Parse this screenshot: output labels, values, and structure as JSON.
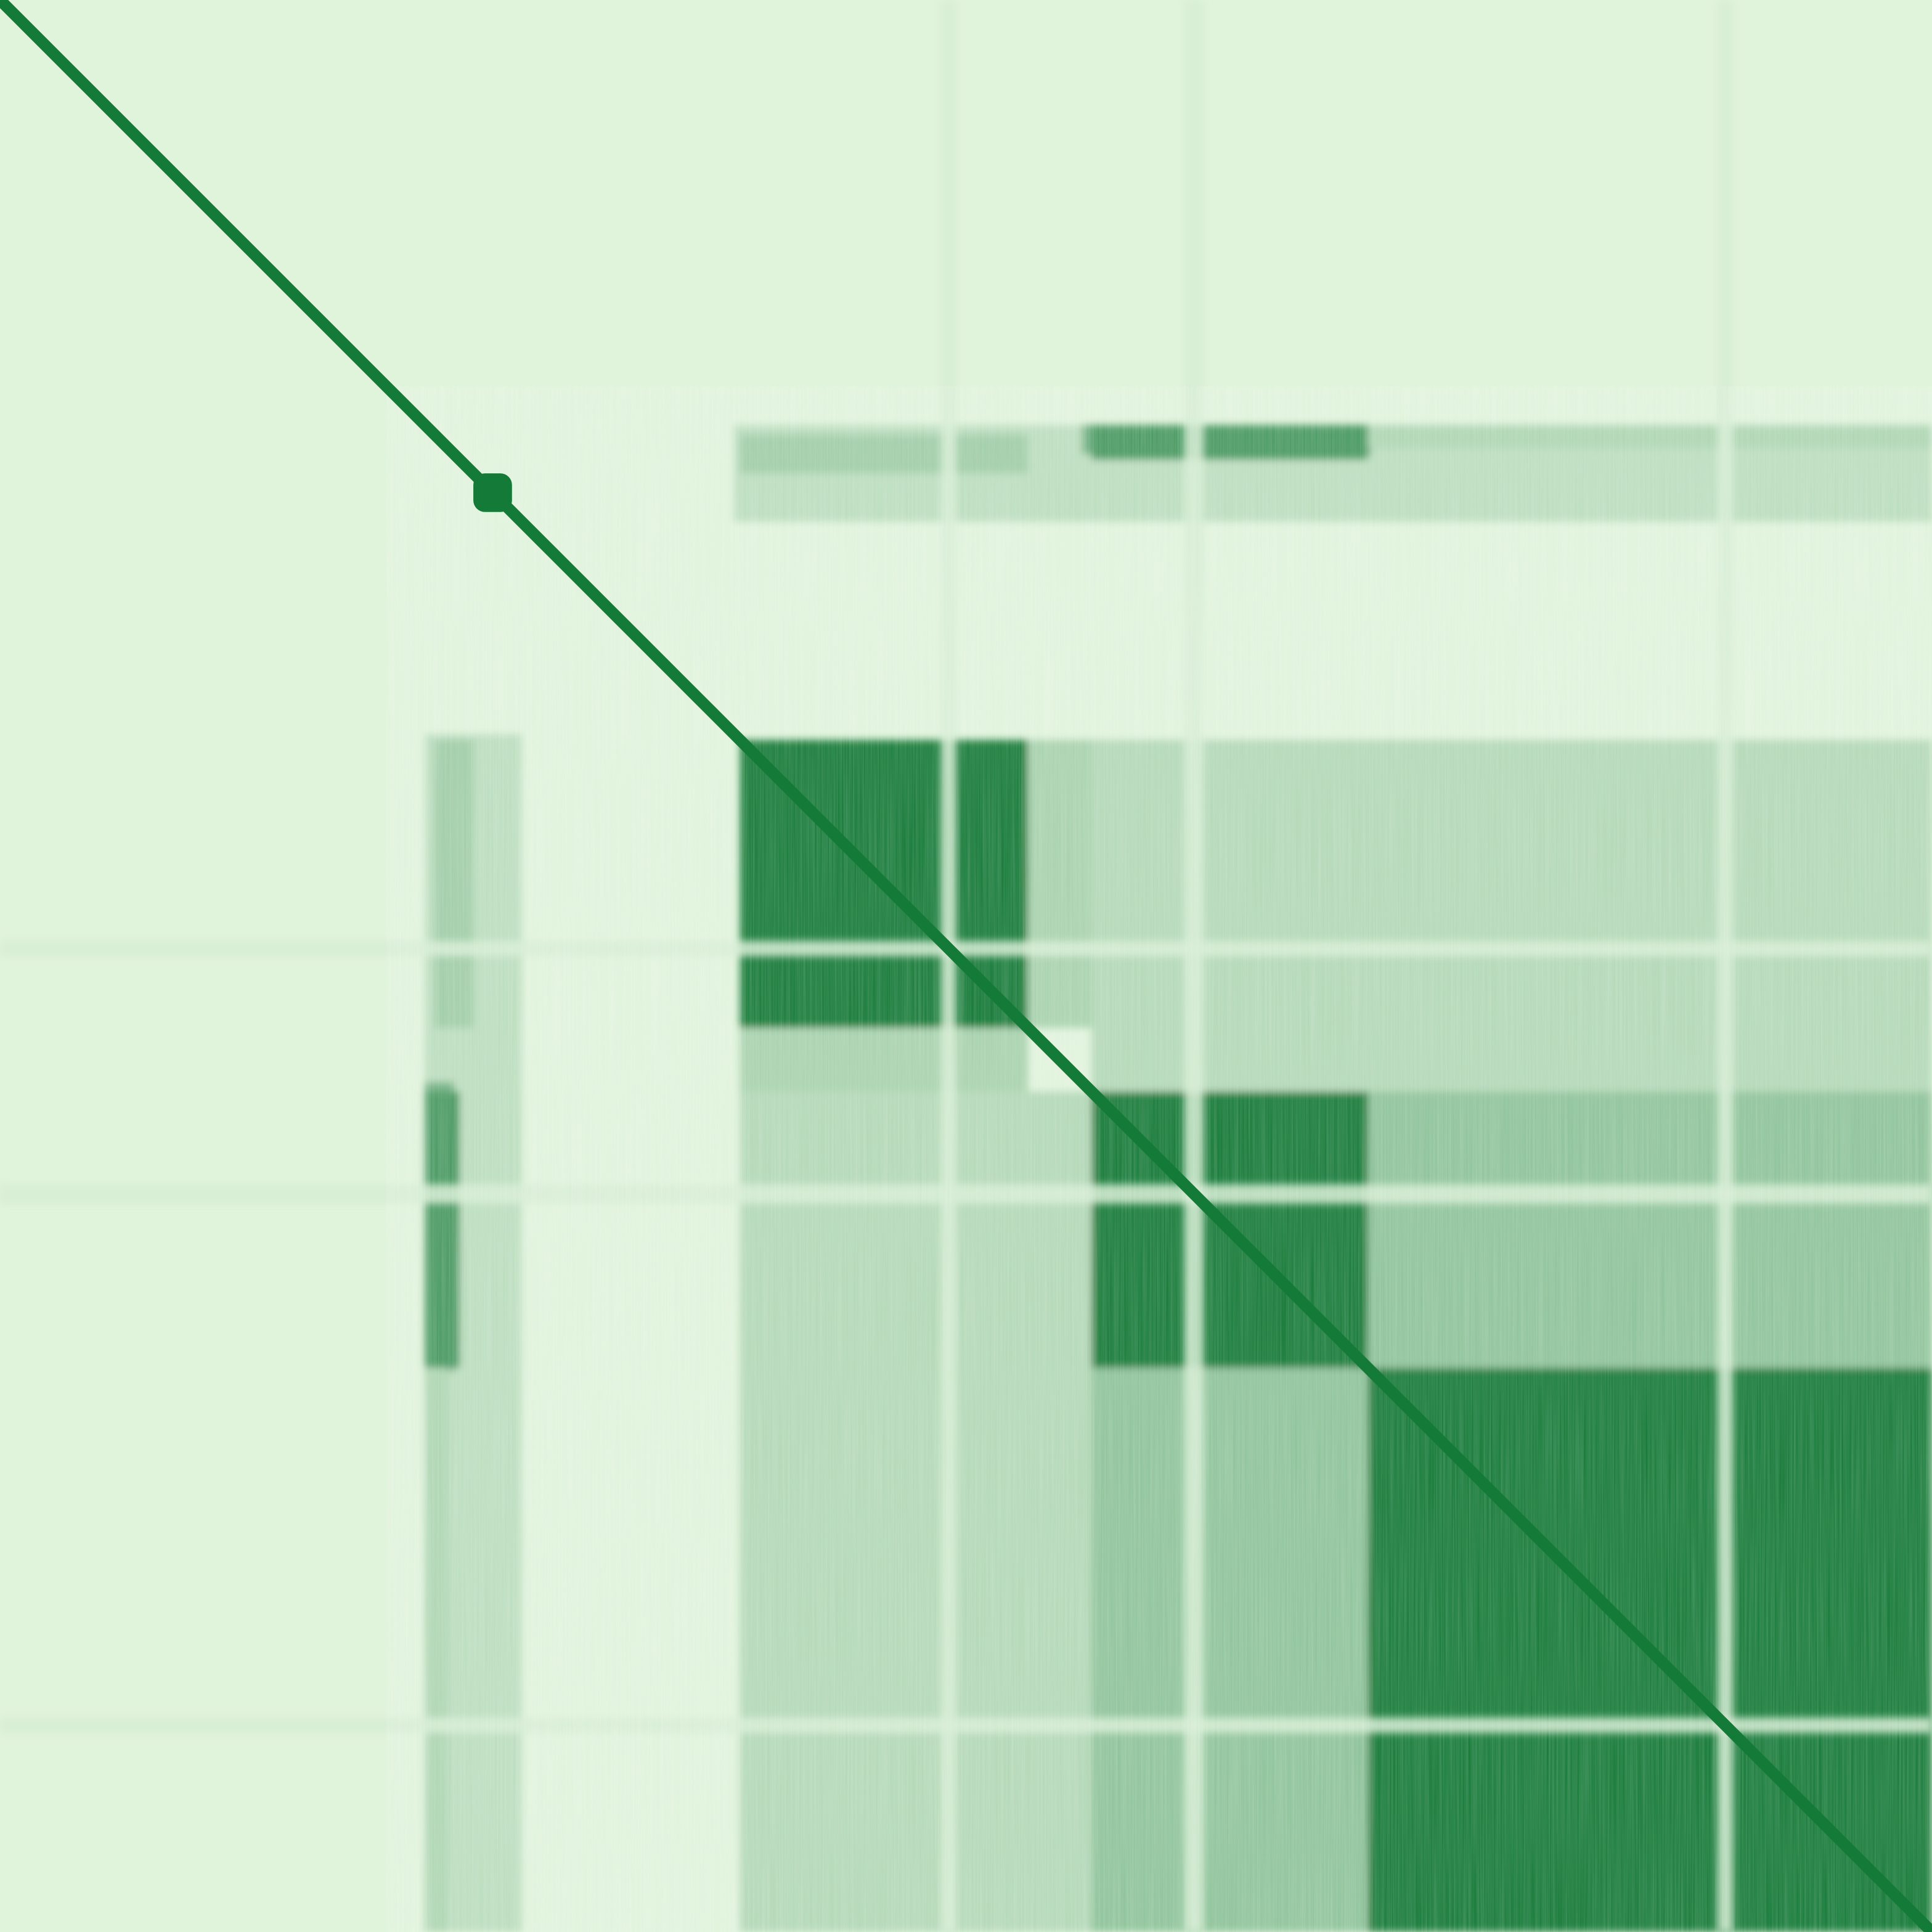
{
  "chart_data": {
    "type": "heatmap",
    "title": "",
    "xlabel": "",
    "ylabel": "",
    "axis_range": [
      0,
      1
    ],
    "grid": false,
    "legend": "none",
    "colors": {
      "low": "#e0f3db",
      "high": "#147a38"
    },
    "diagonal": {
      "from": 0.0,
      "to": 1.0,
      "value": 1.0,
      "thickness": 0.006
    },
    "node": {
      "center": 0.255,
      "size": 0.02,
      "value": 1.0
    },
    "blocks": [
      {
        "name": "block-1",
        "start": 0.383,
        "end": 0.532,
        "value": 1.0,
        "gap": [
          0.487,
          0.495
        ]
      },
      {
        "name": "block-2",
        "start": 0.565,
        "end": 0.708,
        "value": 1.0,
        "gap": [
          0.613,
          0.623
        ]
      },
      {
        "name": "block-3",
        "start": 0.708,
        "end": 1.0,
        "value": 1.0,
        "gap": [
          0.889,
          0.897
        ]
      }
    ],
    "off_diagonal": [
      {
        "rows": [
          0.383,
          0.532
        ],
        "cols": [
          0.532,
          1.0
        ],
        "value": 0.28
      },
      {
        "rows": [
          0.565,
          0.708
        ],
        "cols": [
          0.708,
          1.0
        ],
        "value": 0.52
      },
      {
        "rows": [
          0.708,
          1.0
        ],
        "cols": [
          0.383,
          0.565
        ],
        "value": 0.28
      },
      {
        "rows": [
          0.708,
          1.0
        ],
        "cols": [
          0.565,
          0.708
        ],
        "value": 0.4
      },
      {
        "rows": [
          0.565,
          1.0
        ],
        "cols": [
          0.383,
          0.565
        ],
        "value": 0.22
      },
      {
        "rows": [
          0.22,
          0.27
        ],
        "cols": [
          0.38,
          1.0
        ],
        "value": 0.18
      },
      {
        "rows": [
          0.22,
          0.235
        ],
        "cols": [
          0.56,
          0.71
        ],
        "value": 0.55
      },
      {
        "rows": [
          0.383,
          0.532
        ],
        "cols": [
          0.225,
          0.245
        ],
        "value": 0.32
      },
      {
        "rows": [
          0.565,
          0.708
        ],
        "cols": [
          0.22,
          0.238
        ],
        "value": 0.75
      },
      {
        "rows": [
          0.708,
          1.0
        ],
        "cols": [
          0.22,
          0.232
        ],
        "value": 0.25
      }
    ]
  }
}
